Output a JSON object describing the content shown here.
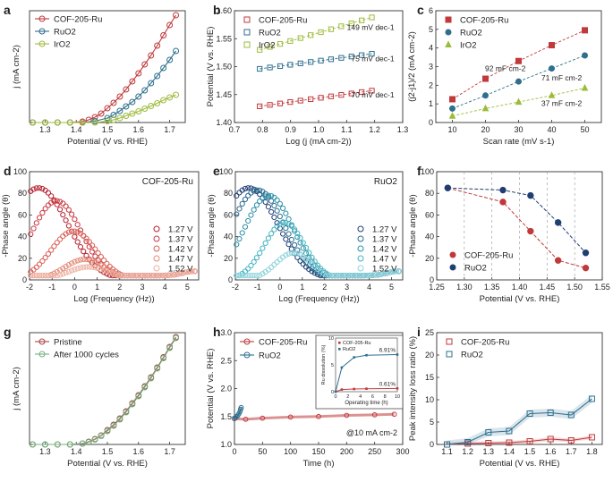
{
  "figure": {
    "panel_letters": [
      "a",
      "b",
      "c",
      "d",
      "e",
      "f",
      "g",
      "h",
      "i"
    ]
  },
  "colors": {
    "cof": "#c0393b",
    "ruo2": "#2e6f8e",
    "iro2": "#9dbb3a",
    "ruo2_dark": "#1f3f73"
  },
  "chart_data": [
    {
      "id": "a",
      "type": "line",
      "xlabel": "Potential (V vs. RHE)",
      "ylabel": "j (mA cm-2)",
      "xlim": [
        1.25,
        1.75
      ],
      "ylim": [
        0,
        250
      ],
      "xticks": [
        1.3,
        1.4,
        1.5,
        1.6,
        1.7
      ],
      "xtick_labels": [
        "1.3",
        "1.4",
        "1.5",
        "1.6",
        "1.7"
      ],
      "yticks": [],
      "ytick_labels": [],
      "legend": "top-left",
      "series": [
        {
          "name": "COF-205-Ru",
          "color": "cof",
          "x": [
            1.26,
            1.3,
            1.34,
            1.38,
            1.42,
            1.44,
            1.46,
            1.48,
            1.5,
            1.52,
            1.54,
            1.56,
            1.58,
            1.6,
            1.62,
            1.64,
            1.66,
            1.68,
            1.7,
            1.72
          ],
          "y": [
            0,
            0,
            0,
            0,
            2,
            6,
            12,
            20,
            32,
            44,
            58,
            74,
            92,
            110,
            130,
            150,
            172,
            195,
            218,
            240
          ]
        },
        {
          "name": "RuO2",
          "color": "ruo2",
          "x": [
            1.26,
            1.3,
            1.34,
            1.38,
            1.42,
            1.46,
            1.5,
            1.52,
            1.54,
            1.56,
            1.58,
            1.6,
            1.62,
            1.64,
            1.66,
            1.68,
            1.7,
            1.72
          ],
          "y": [
            0,
            0,
            0,
            0,
            0,
            3,
            10,
            17,
            26,
            36,
            46,
            58,
            72,
            88,
            104,
            122,
            140,
            160
          ]
        },
        {
          "name": "IrO2",
          "color": "iro2",
          "x": [
            1.26,
            1.3,
            1.34,
            1.38,
            1.42,
            1.46,
            1.5,
            1.52,
            1.54,
            1.56,
            1.58,
            1.6,
            1.62,
            1.64,
            1.66,
            1.68,
            1.7,
            1.72
          ],
          "y": [
            0,
            0,
            0,
            0,
            0,
            0,
            3,
            6,
            10,
            15,
            20,
            25,
            31,
            37,
            43,
            50,
            56,
            62
          ]
        }
      ]
    },
    {
      "id": "b",
      "type": "scatter",
      "xlabel": "Log (j (mA cm-2))",
      "ylabel": "Potential (V vs. RHE)",
      "xlim": [
        0.7,
        1.3
      ],
      "ylim": [
        1.4,
        1.6
      ],
      "xticks": [
        0.7,
        0.8,
        0.9,
        1.0,
        1.1,
        1.2,
        1.3
      ],
      "xtick_labels": [
        "0.7",
        "0.8",
        "0.9",
        "1.0",
        "1.1",
        "1.2",
        "1.3"
      ],
      "yticks": [
        1.4,
        1.45,
        1.5,
        1.55,
        1.6
      ],
      "ytick_labels": [
        "1.40",
        "1.45",
        "1.50",
        "1.55",
        "1.60"
      ],
      "legend": "top-left",
      "series": [
        {
          "name": "COF-205-Ru",
          "color": "cof",
          "x0": 0.79,
          "x1": 1.19,
          "y0": 1.429,
          "y1": 1.457,
          "n": 12
        },
        {
          "name": "RuO2",
          "color": "ruo2",
          "x0": 0.79,
          "x1": 1.19,
          "y0": 1.496,
          "y1": 1.523,
          "n": 12
        },
        {
          "name": "IrO2",
          "color": "iro2",
          "x0": 0.79,
          "x1": 1.19,
          "y0": 1.53,
          "y1": 1.588,
          "n": 12
        }
      ],
      "annotations": [
        {
          "text": "149 mV dec-1",
          "color": "iro2",
          "x": 1.27,
          "y": 1.566
        },
        {
          "text": "75 mV dec-1",
          "color": "ruo2",
          "x": 1.27,
          "y": 1.51
        },
        {
          "text": "70 mV dec-1",
          "color": "cof",
          "x": 1.27,
          "y": 1.445
        }
      ]
    },
    {
      "id": "c",
      "type": "scatter",
      "xlabel": "Scan rate (mV s-1)",
      "ylabel": "(j2-j1)/2 (mA cm-2)",
      "xlim": [
        5,
        55
      ],
      "ylim": [
        0,
        6
      ],
      "xticks": [
        10,
        20,
        30,
        40,
        50
      ],
      "xtick_labels": [
        "10",
        "20",
        "30",
        "40",
        "50"
      ],
      "yticks": [
        0,
        1,
        2,
        3,
        4,
        5,
        6
      ],
      "ytick_labels": [
        "0",
        "1",
        "2",
        "3",
        "4",
        "5",
        "6"
      ],
      "legend": "top-left",
      "series": [
        {
          "name": "COF-205-Ru",
          "color": "cof",
          "marker": "square",
          "x": [
            10,
            20,
            30,
            40,
            50
          ],
          "y": [
            1.25,
            2.35,
            3.3,
            4.15,
            4.95
          ]
        },
        {
          "name": "RuO2",
          "color": "ruo2",
          "marker": "circle",
          "x": [
            10,
            20,
            30,
            40,
            50
          ],
          "y": [
            0.75,
            1.45,
            2.2,
            2.9,
            3.6
          ]
        },
        {
          "name": "IrO2",
          "color": "iro2",
          "marker": "triangle",
          "x": [
            10,
            20,
            30,
            40,
            50
          ],
          "y": [
            0.35,
            0.75,
            1.1,
            1.45,
            1.85
          ]
        }
      ],
      "annotations": [
        {
          "text": "92 mF cm-2",
          "color": "cof",
          "x": 26,
          "y": 2.75
        },
        {
          "text": "71 mF cm-2",
          "color": "ruo2",
          "x": 43,
          "y": 2.25
        },
        {
          "text": "37 mF cm-2",
          "color": "iro2",
          "x": 43,
          "y": 0.9
        }
      ]
    },
    {
      "id": "d",
      "type": "line",
      "title": "COF-205-Ru",
      "xlabel": "Log (Frequency (Hz))",
      "ylabel": "-Phase angle (θ)",
      "xlim": [
        -2,
        5.5
      ],
      "ylim": [
        0,
        100
      ],
      "xticks": [
        -2,
        -1,
        0,
        1,
        2,
        3,
        4,
        5
      ],
      "xtick_labels": [
        "-2",
        "-1",
        "0",
        "1",
        "2",
        "3",
        "4",
        "5"
      ],
      "yticks": [
        0,
        20,
        40,
        60,
        80,
        100
      ],
      "ytick_labels": [
        "0",
        "20",
        "40",
        "60",
        "80",
        "100"
      ],
      "legend": "right",
      "series": [
        {
          "name": "1.27 V",
          "color": "#b5202e",
          "peak": 85,
          "center": -1.6,
          "width": 1.3,
          "base": 4
        },
        {
          "name": "1.37 V",
          "color": "#c83a43",
          "peak": 73,
          "center": -0.8,
          "width": 1.1,
          "base": 4
        },
        {
          "name": "1.42 V",
          "color": "#d85f56",
          "peak": 45,
          "center": -0.05,
          "width": 1.0,
          "base": 4
        },
        {
          "name": "1.47 V",
          "color": "#e38a79",
          "peak": 19,
          "center": 0.45,
          "width": 0.9,
          "base": 4
        },
        {
          "name": "1.52 V",
          "color": "#ecb0a0",
          "peak": 12,
          "center": 0.6,
          "width": 0.9,
          "base": 4
        }
      ]
    },
    {
      "id": "e",
      "type": "line",
      "title": "RuO2",
      "xlabel": "Log (Frequency (Hz))",
      "ylabel": "-Phase angle (θ)",
      "xlim": [
        -2,
        5.5
      ],
      "ylim": [
        0,
        100
      ],
      "xticks": [
        -2,
        -1,
        0,
        1,
        2,
        3,
        4,
        5
      ],
      "xtick_labels": [
        "-2",
        "-1",
        "0",
        "1",
        "2",
        "3",
        "4",
        "5"
      ],
      "yticks": [
        0,
        20,
        40,
        60,
        80,
        100
      ],
      "ytick_labels": [
        "0",
        "20",
        "40",
        "60",
        "80",
        "100"
      ],
      "legend": "right",
      "series": [
        {
          "name": "1.27 V",
          "color": "#1f3f73",
          "peak": 85,
          "center": -1.4,
          "width": 1.3,
          "base": 4
        },
        {
          "name": "1.37 V",
          "color": "#2b6a8f",
          "peak": 83,
          "center": -1.0,
          "width": 1.2,
          "base": 4
        },
        {
          "name": "1.42 V",
          "color": "#2a8fa8",
          "peak": 78,
          "center": -0.5,
          "width": 1.1,
          "base": 4
        },
        {
          "name": "1.47 V",
          "color": "#45b3bf",
          "peak": 53,
          "center": 0.2,
          "width": 0.9,
          "base": 4
        },
        {
          "name": "1.52 V",
          "color": "#8ed3dc",
          "peak": 25,
          "center": 0.6,
          "width": 0.8,
          "base": 4
        }
      ]
    },
    {
      "id": "f",
      "type": "line",
      "xlabel": "Potential (V vs. RHE)",
      "ylabel": "-Phase angle (θ)",
      "xlim": [
        1.25,
        1.55
      ],
      "ylim": [
        0,
        100
      ],
      "xticks": [
        1.25,
        1.3,
        1.35,
        1.4,
        1.45,
        1.5,
        1.55
      ],
      "xtick_labels": [
        "1.25",
        "1.30",
        "1.35",
        "1.40",
        "1.45",
        "1.50",
        "1.55"
      ],
      "yticks": [
        0,
        20,
        40,
        60,
        80,
        100
      ],
      "ytick_labels": [
        "0",
        "20",
        "40",
        "60",
        "80",
        "100"
      ],
      "legend": "bottom-left",
      "series": [
        {
          "name": "COF-205-Ru",
          "color": "cof",
          "x": [
            1.27,
            1.37,
            1.42,
            1.47,
            1.52
          ],
          "y": [
            85,
            72,
            45,
            18,
            11
          ]
        },
        {
          "name": "RuO2",
          "color": "ruo2_dark",
          "x": [
            1.27,
            1.37,
            1.42,
            1.47,
            1.52
          ],
          "y": [
            85,
            83,
            78,
            53,
            25
          ]
        }
      ]
    },
    {
      "id": "g",
      "type": "line",
      "xlabel": "Potential (V vs. RHE)",
      "ylabel": "j (mA cm-2)",
      "xlim": [
        1.25,
        1.75
      ],
      "ylim": [
        0,
        250
      ],
      "xticks": [
        1.3,
        1.4,
        1.5,
        1.6,
        1.7
      ],
      "xtick_labels": [
        "1.3",
        "1.4",
        "1.5",
        "1.6",
        "1.7"
      ],
      "yticks": [],
      "ytick_labels": [],
      "legend": "top-left",
      "series": [
        {
          "name": "Pristine",
          "color": "#a8443e",
          "x": [
            1.26,
            1.3,
            1.34,
            1.38,
            1.42,
            1.44,
            1.46,
            1.48,
            1.5,
            1.52,
            1.54,
            1.56,
            1.58,
            1.6,
            1.62,
            1.64,
            1.66,
            1.68,
            1.7,
            1.72
          ],
          "y": [
            0,
            0,
            0,
            0,
            2,
            6,
            12,
            20,
            32,
            44,
            58,
            74,
            92,
            110,
            130,
            150,
            172,
            195,
            218,
            240
          ]
        },
        {
          "name": "After 1000 cycles",
          "color": "#74b080",
          "x": [
            1.26,
            1.3,
            1.34,
            1.38,
            1.42,
            1.44,
            1.46,
            1.48,
            1.5,
            1.52,
            1.54,
            1.56,
            1.58,
            1.6,
            1.62,
            1.64,
            1.66,
            1.68,
            1.7,
            1.72
          ],
          "y": [
            0,
            0,
            0,
            0,
            2,
            5,
            11,
            19,
            30,
            42,
            56,
            72,
            90,
            108,
            128,
            148,
            170,
            193,
            216,
            238
          ]
        }
      ]
    },
    {
      "id": "h",
      "type": "line",
      "xlabel": "Time (h)",
      "ylabel": "Potential (V vs. RHE)",
      "xlim": [
        0,
        300
      ],
      "ylim": [
        1.0,
        3.0
      ],
      "xticks": [
        0,
        50,
        100,
        150,
        200,
        250,
        300
      ],
      "xtick_labels": [
        "0",
        "50",
        "100",
        "150",
        "200",
        "250",
        "300"
      ],
      "yticks": [
        1.0,
        1.5,
        2.0,
        2.5,
        3.0
      ],
      "ytick_labels": [
        "1.0",
        "1.5",
        "2.0",
        "2.5",
        "3.0"
      ],
      "legend": "top-left",
      "annotation": "@10 mA cm-2",
      "series": [
        {
          "name": "COF-205-Ru",
          "color": "cof",
          "x": [
            0,
            20,
            50,
            100,
            150,
            200,
            250,
            285
          ],
          "y": [
            1.46,
            1.45,
            1.47,
            1.49,
            1.5,
            1.52,
            1.53,
            1.54
          ]
        },
        {
          "name": "RuO2",
          "color": "ruo2",
          "x": [
            0,
            2,
            4,
            6,
            8,
            10,
            11,
            12
          ],
          "y": [
            1.47,
            1.48,
            1.5,
            1.52,
            1.55,
            1.59,
            1.63,
            1.66
          ]
        }
      ],
      "inset": {
        "xlabel": "Operating time (h)",
        "ylabel": "Ru dissolution (%)",
        "xlim": [
          0,
          10
        ],
        "ylim": [
          0,
          10
        ],
        "xticks": [
          0,
          2,
          4,
          6,
          8,
          10
        ],
        "xtick_labels": [
          "0",
          "2",
          "4",
          "6",
          "8",
          "10"
        ],
        "yticks": [
          0,
          5,
          10
        ],
        "ytick_labels": [
          "0",
          "5",
          "10"
        ],
        "legend": "top-left",
        "series": [
          {
            "name": "COF-205-Ru",
            "color": "cof",
            "x": [
              0,
              1,
              3,
              5,
              10
            ],
            "y": [
              0,
              0.4,
              0.5,
              0.55,
              0.61
            ]
          },
          {
            "name": "RuO2",
            "color": "ruo2",
            "x": [
              0,
              1,
              3,
              5,
              10
            ],
            "y": [
              0,
              4.5,
              6.4,
              6.8,
              6.91
            ]
          }
        ],
        "annotations": [
          {
            "text": "6.91%",
            "color": "ruo2",
            "x": 10,
            "y": 6.91
          },
          {
            "text": "0.61%",
            "color": "cof",
            "x": 10,
            "y": 0.61
          }
        ]
      }
    },
    {
      "id": "i",
      "type": "line",
      "xlabel": "Potential (V vs. RHE)",
      "ylabel": "Peak intensity loss ratio (%)",
      "xlim": [
        1.05,
        1.85
      ],
      "ylim": [
        0,
        25
      ],
      "xticks": [
        1.1,
        1.2,
        1.3,
        1.4,
        1.5,
        1.6,
        1.7,
        1.8
      ],
      "xtick_labels": [
        "1.1",
        "1.2",
        "1.3",
        "1.4",
        "1.5",
        "1.6",
        "1.7",
        "1.8"
      ],
      "yticks": [
        0,
        5,
        10,
        15,
        20,
        25
      ],
      "ytick_labels": [
        "0",
        "5",
        "10",
        "15",
        "20",
        "25"
      ],
      "legend": "top-left",
      "series": [
        {
          "name": "COF-205-Ru",
          "color": "cof",
          "x": [
            1.1,
            1.2,
            1.3,
            1.4,
            1.5,
            1.6,
            1.7,
            1.8
          ],
          "y": [
            0,
            0.2,
            0.3,
            0.4,
            0.7,
            1.2,
            0.9,
            1.6
          ]
        },
        {
          "name": "RuO2",
          "color": "ruo2",
          "x": [
            1.1,
            1.2,
            1.3,
            1.4,
            1.5,
            1.6,
            1.7,
            1.8
          ],
          "y": [
            0,
            0.5,
            2.7,
            3.0,
            6.9,
            7.1,
            6.6,
            10.2
          ]
        }
      ]
    }
  ]
}
